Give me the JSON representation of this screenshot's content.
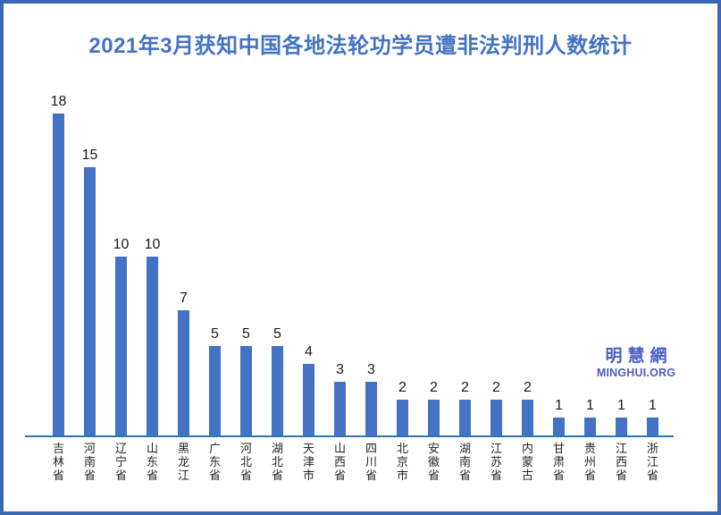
{
  "page": {
    "background": "#ffffff",
    "border_color": "#3b66b5"
  },
  "chart_data": {
    "type": "bar",
    "title": "2021年3月获知中国各地法轮功学员遭非法判刑人数统计",
    "categories": [
      "吉林省",
      "河南省",
      "辽宁省",
      "山东省",
      "黑龙江",
      "广东省",
      "河北省",
      "湖北省",
      "天津市",
      "山西省",
      "四川省",
      "北京市",
      "安徽省",
      "湖南省",
      "江苏省",
      "内蒙古",
      "甘肃省",
      "贵州省",
      "江西省",
      "浙江省"
    ],
    "values": [
      18,
      15,
      10,
      10,
      7,
      5,
      5,
      5,
      4,
      3,
      3,
      2,
      2,
      2,
      2,
      2,
      1,
      1,
      1,
      1
    ],
    "xlabel": "",
    "ylabel": "",
    "ylim": [
      0,
      18
    ],
    "gridlines": false,
    "legend": "none",
    "data_labels": "above-bars",
    "category_label_orientation": "vertical-stacked",
    "bar_color": "#4472c4",
    "axis_line_color": "#2e75b6",
    "title_color": "#4472c4"
  },
  "watermark": {
    "chinese": "明慧網",
    "latin": "MINGHUI.ORG",
    "color": "#4a5fc3"
  }
}
